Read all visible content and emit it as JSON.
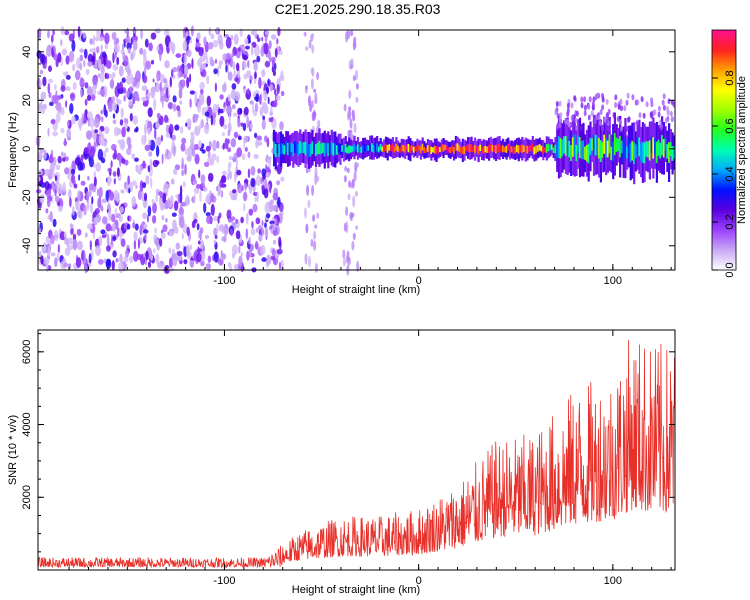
{
  "title": "C2E1.2025.290.18.35.R03",
  "chart_data": [
    {
      "type": "heatmap",
      "xlabel": "Height of straight line (km)",
      "ylabel": "Frequency (Hz)",
      "xlim": [
        -196,
        132
      ],
      "ylim": [
        -50,
        49
      ],
      "xticks": [
        -100,
        0,
        100
      ],
      "xtick_labels": [
        "-100",
        "0",
        "100"
      ],
      "yticks": [
        -40,
        -20,
        0,
        20,
        40
      ],
      "ytick_labels": [
        "-40",
        "-20",
        "0",
        "20",
        "40"
      ],
      "colorbar": {
        "label": "Normalized spectral amplitude",
        "range": [
          0,
          1
        ],
        "ticks": [
          0.0,
          0.2,
          0.4,
          0.6,
          0.8
        ],
        "tick_labels": [
          "0.0",
          "0.2",
          "0.4",
          "0.6",
          "0.8"
        ],
        "colors": [
          "#ffffff",
          "#c8a8f5",
          "#9a40ff",
          "#5a00e0",
          "#0010ff",
          "#00aaff",
          "#00ffb0",
          "#20ff20",
          "#a0ff00",
          "#ffff00",
          "#ffa000",
          "#ff2020",
          "#ff1090"
        ]
      },
      "noise_region_x": [
        -196,
        -70
      ],
      "band_region_x": [
        -75,
        132
      ],
      "band_center_hz": 0
    },
    {
      "type": "line",
      "xlabel": "Height of straight line (km)",
      "ylabel": "SNR (10 * v/v)",
      "xlim": [
        -196,
        132
      ],
      "ylim": [
        0,
        6600
      ],
      "xticks": [
        -100,
        0,
        100
      ],
      "xtick_labels": [
        "-100",
        "0",
        "100"
      ],
      "yticks": [
        2000,
        4000,
        6000
      ],
      "ytick_labels": [
        "2000",
        "4000",
        "6000"
      ],
      "line_color": "#e8302a",
      "envelope": {
        "x": [
          -196,
          -80,
          -60,
          -40,
          -20,
          0,
          20,
          40,
          60,
          80,
          100,
          110,
          120,
          132
        ],
        "y_max": [
          350,
          350,
          1100,
          1500,
          1500,
          1700,
          2400,
          3600,
          3800,
          5000,
          5500,
          6600,
          6300,
          6200
        ]
      }
    }
  ]
}
